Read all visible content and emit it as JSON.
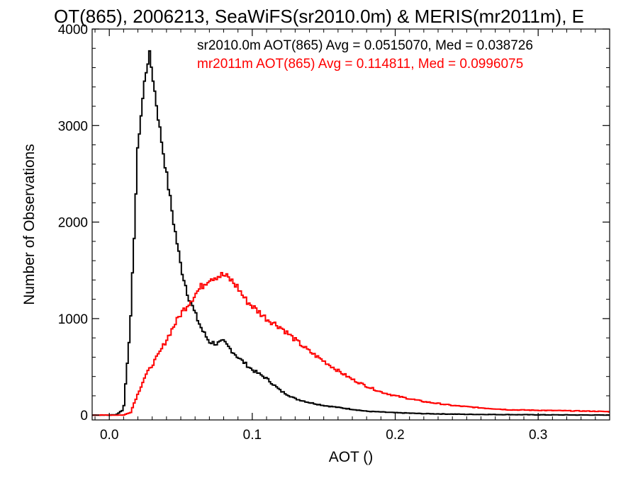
{
  "chart_data": {
    "type": "line",
    "title": "OT(865), 2006213, SeaWiFS(sr2010.0m) & MERIS(mr2011m), E",
    "xlabel": "AOT ()",
    "ylabel": "Number of Observations",
    "xlim": [
      -0.012,
      0.35
    ],
    "ylim": [
      -50,
      4000
    ],
    "x_ticks": [
      0.0,
      0.1,
      0.2,
      0.3
    ],
    "x_tick_labels": [
      "0.0",
      "0.1",
      "0.2",
      "0.3"
    ],
    "y_ticks": [
      0,
      1000,
      2000,
      3000,
      4000
    ],
    "y_tick_labels": [
      "0",
      "1000",
      "2000",
      "3000",
      "4000"
    ],
    "grid": false,
    "legend_position": "top-right",
    "annotations": [
      "sr2010.0m AOT(865) Avg = 0.0515070, Med = 0.038726",
      "mr2011m AOT(865) Avg = 0.114811, Med = 0.0996075"
    ],
    "series": [
      {
        "color": "#000000",
        "style": "histogram-step",
        "x": [
          0.0,
          0.005,
          0.01,
          0.015,
          0.02,
          0.025,
          0.028,
          0.03,
          0.035,
          0.04,
          0.045,
          0.05,
          0.055,
          0.06,
          0.065,
          0.07,
          0.075,
          0.08,
          0.085,
          0.09,
          0.1,
          0.11,
          0.12,
          0.13,
          0.14,
          0.15,
          0.16,
          0.17,
          0.18,
          0.2,
          0.22,
          0.25,
          0.3,
          0.35
        ],
        "values": [
          0,
          5,
          60,
          1000,
          2800,
          3500,
          3750,
          3550,
          3000,
          2500,
          2000,
          1550,
          1250,
          1050,
          880,
          760,
          740,
          760,
          680,
          600,
          470,
          380,
          250,
          170,
          130,
          100,
          80,
          60,
          40,
          25,
          15,
          8,
          3,
          0
        ]
      },
      {
        "color": "#ff0000",
        "style": "histogram-step",
        "x": [
          0.0,
          0.01,
          0.015,
          0.018,
          0.02,
          0.025,
          0.03,
          0.035,
          0.04,
          0.045,
          0.05,
          0.055,
          0.06,
          0.065,
          0.07,
          0.075,
          0.08,
          0.085,
          0.09,
          0.095,
          0.1,
          0.11,
          0.12,
          0.13,
          0.14,
          0.15,
          0.16,
          0.17,
          0.18,
          0.19,
          0.2,
          0.22,
          0.24,
          0.26,
          0.28,
          0.3,
          0.32,
          0.34,
          0.35
        ],
        "values": [
          0,
          0,
          30,
          150,
          220,
          400,
          520,
          640,
          780,
          920,
          1050,
          1150,
          1250,
          1340,
          1420,
          1440,
          1450,
          1400,
          1320,
          1200,
          1130,
          1000,
          910,
          780,
          660,
          560,
          460,
          370,
          300,
          240,
          200,
          140,
          100,
          75,
          55,
          50,
          45,
          40,
          35
        ]
      }
    ]
  },
  "colors": {
    "axis": "#000000",
    "series_black": "#000000",
    "series_red": "#ff0000",
    "background": "#ffffff"
  }
}
